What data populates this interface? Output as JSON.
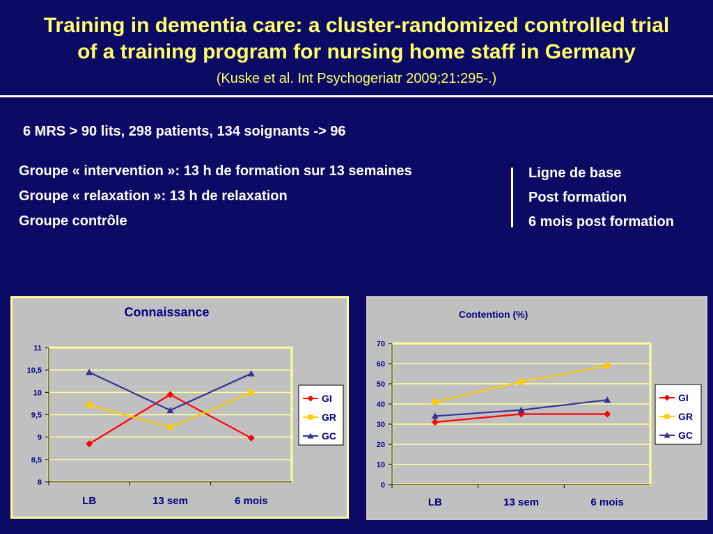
{
  "slide": {
    "title_line1": "Training in dementia care: a cluster-randomized controlled trial",
    "title_line2": "of a training program for nursing home staff in Germany",
    "citation": "(Kuske et al. Int Psychogeriatr 2009;21:295-.)",
    "info": "6 MRS > 90 lits, 298 patients, 134 soignants -> 96",
    "groups": [
      "Groupe « intervention »: 13 h de formation sur 13 semaines",
      "Groupe « relaxation »: 13 h de relaxation",
      "Groupe contrôle"
    ],
    "phases": [
      "Ligne de base",
      "Post formation",
      "6 mois post formation"
    ]
  },
  "colors": {
    "background": "#0b0b66",
    "title": "#ffff66",
    "text": "#ffffff",
    "chart_bg": "#c0c0c0",
    "plot_border": "#ffff99",
    "gi": "#ff0000",
    "gr": "#ffcc00",
    "gc": "#333399",
    "label": "#000080"
  },
  "chart_data": [
    {
      "type": "line",
      "title": "Connaissance",
      "categories": [
        "LB",
        "13 sem",
        "6 mois"
      ],
      "ylim": [
        8,
        11
      ],
      "yticks": [
        8,
        8.5,
        9,
        9.5,
        10,
        10.5,
        11
      ],
      "ytick_labels": [
        "8",
        "8,5",
        "9",
        "9,5",
        "10",
        "10,5",
        "11"
      ],
      "grid": true,
      "legend": "right",
      "series": [
        {
          "name": "GI",
          "values": [
            8.85,
            9.95,
            8.98
          ],
          "marker": "diamond",
          "color": "#ff0000"
        },
        {
          "name": "GR",
          "values": [
            9.72,
            9.22,
            10.0
          ],
          "marker": "square",
          "color": "#ffcc00"
        },
        {
          "name": "GC",
          "values": [
            10.45,
            9.6,
            10.42
          ],
          "marker": "triangle",
          "color": "#333399"
        }
      ]
    },
    {
      "type": "line",
      "title": "Contention (%)",
      "categories": [
        "LB",
        "13 sem",
        "6 mois"
      ],
      "ylim": [
        0,
        70
      ],
      "yticks": [
        0,
        10,
        20,
        30,
        40,
        50,
        60,
        70
      ],
      "ytick_labels": [
        "0",
        "10",
        "20",
        "30",
        "40",
        "50",
        "60",
        "70"
      ],
      "grid": true,
      "legend": "right",
      "series": [
        {
          "name": "GI",
          "values": [
            31,
            35,
            35
          ],
          "marker": "diamond",
          "color": "#ff0000"
        },
        {
          "name": "GR",
          "values": [
            41,
            51,
            59
          ],
          "marker": "square",
          "color": "#ffcc00"
        },
        {
          "name": "GC",
          "values": [
            34,
            37,
            42
          ],
          "marker": "triangle",
          "color": "#333399"
        }
      ]
    }
  ]
}
